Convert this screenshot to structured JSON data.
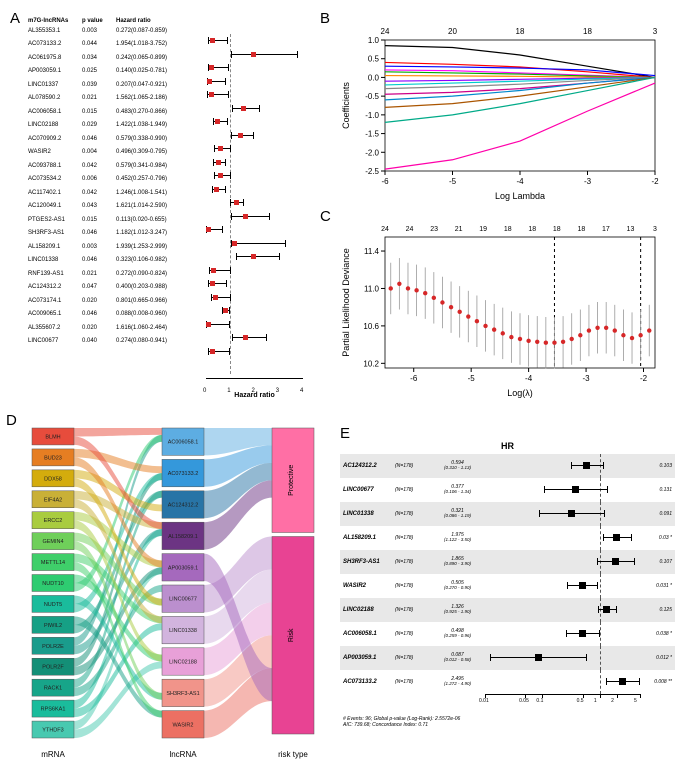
{
  "panelA": {
    "headers": [
      "m7G-lncRNAs",
      "p value",
      "Hazard ratio"
    ],
    "x_label": "Hazard ratio",
    "x_ticks": [
      0,
      1,
      2,
      3,
      4
    ],
    "x_range": [
      0,
      4
    ],
    "ref_line": 1.0,
    "point_color": "#d62728",
    "rows": [
      {
        "name": "AL355353.1",
        "p": "0.003",
        "hr": "0.272(0.087-0.859)",
        "est": 0.272,
        "lo": 0.087,
        "hi": 0.859
      },
      {
        "name": "AC073133.2",
        "p": "0.044",
        "hr": "1.954(1.018-3.752)",
        "est": 1.954,
        "lo": 1.018,
        "hi": 3.752
      },
      {
        "name": "AC061975.8",
        "p": "0.034",
        "hr": "0.242(0.065-0.899)",
        "est": 0.242,
        "lo": 0.065,
        "hi": 0.899
      },
      {
        "name": "AP003059.1",
        "p": "0.025",
        "hr": "0.140(0.025-0.781)",
        "est": 0.14,
        "lo": 0.025,
        "hi": 0.781
      },
      {
        "name": "LINC01337",
        "p": "0.039",
        "hr": "0.207(0.047-0.921)",
        "est": 0.207,
        "lo": 0.047,
        "hi": 0.921
      },
      {
        "name": "AL078590.2",
        "p": "0.021",
        "hr": "1.562(1.065-2.186)",
        "est": 1.562,
        "lo": 1.065,
        "hi": 2.186
      },
      {
        "name": "AC006058.1",
        "p": "0.015",
        "hr": "0.483(0.270-0.866)",
        "est": 0.483,
        "lo": 0.27,
        "hi": 0.866
      },
      {
        "name": "LINC02188",
        "p": "0.029",
        "hr": "1.422(1.038-1.949)",
        "est": 1.422,
        "lo": 1.038,
        "hi": 1.949
      },
      {
        "name": "AC070909.2",
        "p": "0.046",
        "hr": "0.579(0.338-0.990)",
        "est": 0.579,
        "lo": 0.338,
        "hi": 0.99
      },
      {
        "name": "WASIR2",
        "p": "0.004",
        "hr": "0.496(0.309-0.795)",
        "est": 0.496,
        "lo": 0.309,
        "hi": 0.795
      },
      {
        "name": "AC093788.1",
        "p": "0.042",
        "hr": "0.579(0.341-0.984)",
        "est": 0.579,
        "lo": 0.341,
        "hi": 0.984
      },
      {
        "name": "AC073534.2",
        "p": "0.006",
        "hr": "0.452(0.257-0.796)",
        "est": 0.452,
        "lo": 0.257,
        "hi": 0.796
      },
      {
        "name": "AC117402.1",
        "p": "0.042",
        "hr": "1.246(1.008-1.541)",
        "est": 1.246,
        "lo": 1.008,
        "hi": 1.541
      },
      {
        "name": "AC120049.1",
        "p": "0.043",
        "hr": "1.621(1.014-2.590)",
        "est": 1.621,
        "lo": 1.014,
        "hi": 2.59
      },
      {
        "name": "PTGES2-AS1",
        "p": "0.015",
        "hr": "0.113(0.020-0.655)",
        "est": 0.113,
        "lo": 0.02,
        "hi": 0.655
      },
      {
        "name": "SH3RF3-AS1",
        "p": "0.046",
        "hr": "1.182(1.012-3.247)",
        "est": 1.182,
        "lo": 1.012,
        "hi": 3.247
      },
      {
        "name": "AL158209.1",
        "p": "0.003",
        "hr": "1.939(1.253-2.999)",
        "est": 1.939,
        "lo": 1.253,
        "hi": 2.999
      },
      {
        "name": "LINC01338",
        "p": "0.046",
        "hr": "0.323(0.106-0.982)",
        "est": 0.323,
        "lo": 0.106,
        "hi": 0.982
      },
      {
        "name": "RNF139-AS1",
        "p": "0.021",
        "hr": "0.272(0.090-0.824)",
        "est": 0.272,
        "lo": 0.09,
        "hi": 0.824
      },
      {
        "name": "AC124312.2",
        "p": "0.047",
        "hr": "0.400(0.203-0.988)",
        "est": 0.4,
        "lo": 0.203,
        "hi": 0.988
      },
      {
        "name": "AC073174.1",
        "p": "0.020",
        "hr": "0.801(0.665-0.966)",
        "est": 0.801,
        "lo": 0.665,
        "hi": 0.966
      },
      {
        "name": "AC009065.1",
        "p": "0.046",
        "hr": "0.088(0.008-0.960)",
        "est": 0.088,
        "lo": 0.008,
        "hi": 0.96
      },
      {
        "name": "AL355607.2",
        "p": "0.020",
        "hr": "1.616(1.060-2.464)",
        "est": 1.616,
        "lo": 1.06,
        "hi": 2.464
      },
      {
        "name": "LINC00677",
        "p": "0.040",
        "hr": "0.274(0.080-0.941)",
        "est": 0.274,
        "lo": 0.08,
        "hi": 0.941
      }
    ]
  },
  "panelB": {
    "y_label": "Coefficients",
    "x_label": "Log Lambda",
    "top_ticks": [
      24,
      20,
      18,
      18,
      3
    ],
    "x_range": [
      -6,
      -2
    ],
    "y_range": [
      -2.5,
      1.0
    ],
    "y_ticks": [
      -2.5,
      -2.0,
      -1.5,
      -1.0,
      -0.5,
      0.0,
      0.5,
      1.0
    ],
    "x_ticks": [
      -6,
      -5,
      -4,
      -3,
      -2
    ],
    "lines": [
      {
        "color": "#000000",
        "pts": [
          [
            -6,
            0.85
          ],
          [
            -5,
            0.8
          ],
          [
            -4,
            0.6
          ],
          [
            -3,
            0.3
          ],
          [
            -2,
            0.0
          ]
        ]
      },
      {
        "color": "#ff0000",
        "pts": [
          [
            -6,
            0.4
          ],
          [
            -5,
            0.35
          ],
          [
            -4,
            0.28
          ],
          [
            -3,
            0.15
          ],
          [
            -2,
            0.0
          ]
        ]
      },
      {
        "color": "#0000ff",
        "pts": [
          [
            -6,
            0.3
          ],
          [
            -5,
            0.28
          ],
          [
            -4,
            0.25
          ],
          [
            -3,
            0.2
          ],
          [
            -2,
            0.05
          ]
        ]
      },
      {
        "color": "#ff00ff",
        "pts": [
          [
            -6,
            0.2
          ],
          [
            -5,
            0.18
          ],
          [
            -4,
            0.12
          ],
          [
            -3,
            0.06
          ],
          [
            -2,
            0.0
          ]
        ]
      },
      {
        "color": "#00aa00",
        "pts": [
          [
            -6,
            0.15
          ],
          [
            -5,
            0.12
          ],
          [
            -4,
            0.09
          ],
          [
            -3,
            0.04
          ],
          [
            -2,
            0.0
          ]
        ]
      },
      {
        "color": "#ff8800",
        "pts": [
          [
            -6,
            0.05
          ],
          [
            -5,
            0.04
          ],
          [
            -4,
            0.03
          ],
          [
            -3,
            0.01
          ],
          [
            -2,
            0.0
          ]
        ]
      },
      {
        "color": "#8800ff",
        "pts": [
          [
            -6,
            -0.1
          ],
          [
            -5,
            -0.08
          ],
          [
            -4,
            -0.05
          ],
          [
            -3,
            -0.02
          ],
          [
            -2,
            0.0
          ]
        ]
      },
      {
        "color": "#00cccc",
        "pts": [
          [
            -6,
            -0.2
          ],
          [
            -5,
            -0.15
          ],
          [
            -4,
            -0.1
          ],
          [
            -3,
            -0.04
          ],
          [
            -2,
            0.0
          ]
        ]
      },
      {
        "color": "#888888",
        "pts": [
          [
            -6,
            -0.3
          ],
          [
            -5,
            -0.25
          ],
          [
            -4,
            -0.18
          ],
          [
            -3,
            -0.08
          ],
          [
            -2,
            0.0
          ]
        ]
      },
      {
        "color": "#cc0088",
        "pts": [
          [
            -6,
            -0.45
          ],
          [
            -5,
            -0.4
          ],
          [
            -4,
            -0.3
          ],
          [
            -3,
            -0.15
          ],
          [
            -2,
            0.0
          ]
        ]
      },
      {
        "color": "#0088cc",
        "pts": [
          [
            -6,
            -0.6
          ],
          [
            -5,
            -0.5
          ],
          [
            -4,
            -0.35
          ],
          [
            -3,
            -0.15
          ],
          [
            -2,
            0.0
          ]
        ]
      },
      {
        "color": "#aa5500",
        "pts": [
          [
            -6,
            -0.8
          ],
          [
            -5,
            -0.7
          ],
          [
            -4,
            -0.5
          ],
          [
            -3,
            -0.25
          ],
          [
            -2,
            0.0
          ]
        ]
      },
      {
        "color": "#00aa88",
        "pts": [
          [
            -6,
            -1.2
          ],
          [
            -5,
            -1.0
          ],
          [
            -4,
            -0.7
          ],
          [
            -3,
            -0.35
          ],
          [
            -2,
            0.0
          ]
        ]
      },
      {
        "color": "#ff00aa",
        "pts": [
          [
            -6,
            -2.45
          ],
          [
            -5,
            -2.2
          ],
          [
            -4,
            -1.7
          ],
          [
            -3,
            -0.9
          ],
          [
            -2,
            -0.15
          ]
        ]
      }
    ]
  },
  "panelC": {
    "y_label": "Partial Likelihood Deviance",
    "x_label": "Log(λ)",
    "top_ticks": [
      "24",
      "24",
      "23",
      "21",
      "19",
      "18",
      "18",
      "18",
      "18",
      "17",
      "13",
      "3"
    ],
    "x_range": [
      -6.5,
      -1.8
    ],
    "y_range": [
      10.15,
      11.55
    ],
    "y_ticks": [
      10.2,
      10.6,
      11.0,
      11.4
    ],
    "x_ticks": [
      -6,
      -5,
      -4,
      -3,
      -2
    ],
    "vlines": [
      -3.55,
      -2.05
    ],
    "point_color": "#d62728",
    "points": [
      [
        -6.4,
        11.0
      ],
      [
        -6.25,
        11.05
      ],
      [
        -6.1,
        11.0
      ],
      [
        -5.95,
        10.98
      ],
      [
        -5.8,
        10.95
      ],
      [
        -5.65,
        10.9
      ],
      [
        -5.5,
        10.85
      ],
      [
        -5.35,
        10.8
      ],
      [
        -5.2,
        10.75
      ],
      [
        -5.05,
        10.7
      ],
      [
        -4.9,
        10.65
      ],
      [
        -4.75,
        10.6
      ],
      [
        -4.6,
        10.56
      ],
      [
        -4.45,
        10.52
      ],
      [
        -4.3,
        10.48
      ],
      [
        -4.15,
        10.46
      ],
      [
        -4.0,
        10.44
      ],
      [
        -3.85,
        10.43
      ],
      [
        -3.7,
        10.42
      ],
      [
        -3.55,
        10.42
      ],
      [
        -3.4,
        10.43
      ],
      [
        -3.25,
        10.46
      ],
      [
        -3.1,
        10.5
      ],
      [
        -2.95,
        10.55
      ],
      [
        -2.8,
        10.58
      ],
      [
        -2.65,
        10.58
      ],
      [
        -2.5,
        10.55
      ],
      [
        -2.35,
        10.5
      ],
      [
        -2.2,
        10.47
      ],
      [
        -2.05,
        10.5
      ],
      [
        -1.9,
        10.55
      ]
    ],
    "error_height": 0.55
  },
  "panelD": {
    "cols": [
      "mRNA",
      "lncRNA",
      "risk type"
    ],
    "mRNA": [
      {
        "label": "BLMH",
        "color": "#e74c3c"
      },
      {
        "label": "BUD23",
        "color": "#e67e22"
      },
      {
        "label": "DDX58",
        "color": "#d4ac0d"
      },
      {
        "label": "EIF4A2",
        "color": "#c9b037"
      },
      {
        "label": "ERCC2",
        "color": "#a9cc3f"
      },
      {
        "label": "GEMIN4",
        "color": "#6fcf5a"
      },
      {
        "label": "METTL14",
        "color": "#3fcf6a"
      },
      {
        "label": "NUDT10",
        "color": "#2ecc71"
      },
      {
        "label": "NUDT5",
        "color": "#1abc9c"
      },
      {
        "label": "PIWIL2",
        "color": "#16a085"
      },
      {
        "label": "POLR2E",
        "color": "#1a9c8c"
      },
      {
        "label": "POLR2F",
        "color": "#148f77"
      },
      {
        "label": "RACK1",
        "color": "#17a589"
      },
      {
        "label": "RPS6KA1",
        "color": "#1abc9c"
      },
      {
        "label": "YTHDF3",
        "color": "#48c9b0"
      }
    ],
    "lncRNA": [
      {
        "label": "AC006058.1",
        "color": "#5dade2"
      },
      {
        "label": "AC073133.2",
        "color": "#3498db"
      },
      {
        "label": "AC124312.2",
        "color": "#2874a6"
      },
      {
        "label": "AL158209.1",
        "color": "#6c3483"
      },
      {
        "label": "AP003059.1",
        "color": "#a569bd"
      },
      {
        "label": "LINC00677",
        "color": "#bb8fce"
      },
      {
        "label": "LINC01338",
        "color": "#d2b4de"
      },
      {
        "label": "LINC02188",
        "color": "#e8a0d8"
      },
      {
        "label": "SH3RF3-AS1",
        "color": "#f1948a"
      },
      {
        "label": "WASIR2",
        "color": "#ec7063"
      }
    ],
    "risk": [
      {
        "label": "Protective",
        "color": "#ff6fa5",
        "height": 0.35
      },
      {
        "label": "Risk",
        "color": "#e84393",
        "height": 0.65
      }
    ]
  },
  "panelE": {
    "title": "HR",
    "n_text": "(N=178)",
    "ref_line": 1.0,
    "x_ticks": [
      0.01,
      0.05,
      0.1,
      0.5,
      1,
      2,
      5
    ],
    "log_scale": true,
    "footer": "# Events: 96; Global p-value (Log-Rank): 2.5572e-06\nAIC: 739.68; Concordance Index: 0.71",
    "rows": [
      {
        "name": "AC124312.2",
        "val_top": "0.594",
        "val_bot": "(0.310 - 1.13)",
        "hr": 0.594,
        "lo": 0.31,
        "hi": 1.13,
        "p": "0.103",
        "gray": true
      },
      {
        "name": "LINC00677",
        "val_top": "0.377",
        "val_bot": "(0.106 - 1.34)",
        "hr": 0.377,
        "lo": 0.106,
        "hi": 1.34,
        "p": "0.131",
        "gray": false
      },
      {
        "name": "LINC01338",
        "val_top": "0.321",
        "val_bot": "(0.086 - 1.19)",
        "hr": 0.321,
        "lo": 0.086,
        "hi": 1.19,
        "p": "0.091",
        "gray": true
      },
      {
        "name": "AL158209.1",
        "val_top": "1.975",
        "val_bot": "(1.122 - 3.50)",
        "hr": 1.975,
        "lo": 1.122,
        "hi": 3.5,
        "p": "0.03 *",
        "gray": false
      },
      {
        "name": "SH3RF3-AS1",
        "val_top": "1.865",
        "val_bot": "(0.890 - 3.90)",
        "hr": 1.865,
        "lo": 0.89,
        "hi": 3.9,
        "p": "0.107",
        "gray": true
      },
      {
        "name": "WASIR2",
        "val_top": "0.505",
        "val_bot": "(0.270 - 0.90)",
        "hr": 0.505,
        "lo": 0.27,
        "hi": 0.9,
        "p": "0.031 *",
        "gray": false
      },
      {
        "name": "LINC02188",
        "val_top": "1.326",
        "val_bot": "(0.925 - 1.90)",
        "hr": 1.326,
        "lo": 0.925,
        "hi": 1.9,
        "p": "0.125",
        "gray": true
      },
      {
        "name": "AC006058.1",
        "val_top": "0.498",
        "val_bot": "(0.259 - 0.96)",
        "hr": 0.498,
        "lo": 0.259,
        "hi": 0.96,
        "p": "0.038 *",
        "gray": false
      },
      {
        "name": "AP003059.1",
        "val_top": "0.087",
        "val_bot": "(0.012 - 0.58)",
        "hr": 0.087,
        "lo": 0.012,
        "hi": 0.58,
        "p": "0.012 *",
        "gray": true
      },
      {
        "name": "AC073133.2",
        "val_top": "2.495",
        "val_bot": "(1.272 - 4.90)",
        "hr": 2.495,
        "lo": 1.272,
        "hi": 4.9,
        "p": "0.008 **",
        "gray": false
      }
    ]
  }
}
